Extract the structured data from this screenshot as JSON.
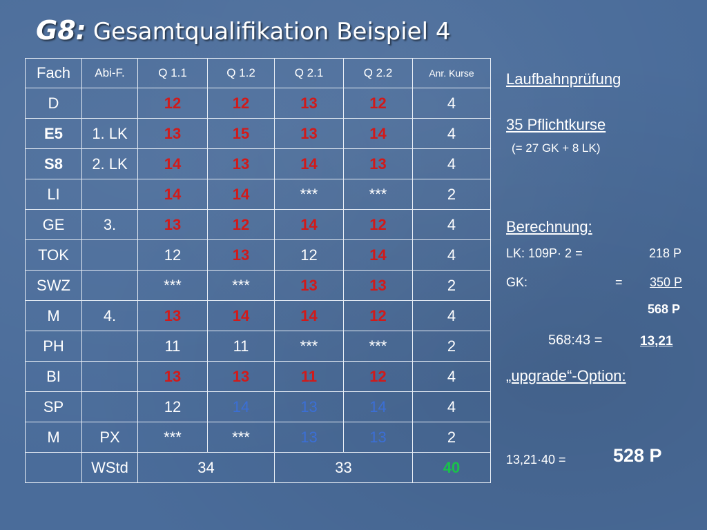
{
  "title": {
    "prefix": "G8:",
    "text": "Gesamtqualifikation Beispiel 4"
  },
  "table": {
    "header": [
      "Fach",
      "Abi-F.",
      "Q 1.1",
      "Q 1.2",
      "Q 2.1",
      "Q 2.2",
      "Anr. Kurse"
    ],
    "rows": [
      [
        "D",
        "",
        "12",
        "12",
        "13",
        "12",
        "4"
      ],
      [
        "E5",
        "1. LK",
        "13",
        "15",
        "13",
        "14",
        "4"
      ],
      [
        "S8",
        "2. LK",
        "14",
        "13",
        "14",
        "13",
        "4"
      ],
      [
        "LI",
        "",
        "14",
        "14",
        "***",
        "***",
        "2"
      ],
      [
        "GE",
        "3.",
        "13",
        "12",
        "14",
        "12",
        "4"
      ],
      [
        "TOK",
        "",
        "12",
        "13",
        "12",
        "14",
        "4"
      ],
      [
        "SWZ",
        "",
        "***",
        "***",
        "13",
        "13",
        "2"
      ],
      [
        "M",
        "4.",
        "13",
        "14",
        "14",
        "12",
        "4"
      ],
      [
        "PH",
        "",
        "11",
        "11",
        "***",
        "***",
        "2"
      ],
      [
        "BI",
        "",
        "13",
        "13",
        "11",
        "12",
        "4"
      ],
      [
        "SP",
        "",
        "12",
        "14",
        "13",
        "14",
        "4"
      ],
      [
        "M",
        "PX",
        "***",
        "***",
        "13",
        "13",
        "2"
      ]
    ],
    "footer": {
      "label": "WStd",
      "q1": "34",
      "q2": "33",
      "total": "40"
    }
  },
  "side": {
    "laufbahn": "Laufbahnprüfung",
    "pflicht": "35 Pflichtkurse",
    "pflicht_detail": "(= 27 GK + 8 LK)",
    "berechnung": "Berechnung:",
    "lk_label": "LK:  109P· 2  =",
    "lk_value": "218 P",
    "gk_label": "GK:",
    "gk_eq": "=",
    "gk_value": "350 P",
    "sum": "568 P",
    "ratio_label": "568:43 =",
    "ratio_value": "13,21",
    "upgrade": "„upgrade“-Option:",
    "upgrade_label": "13,21·40  =",
    "upgrade_value": "528 P"
  },
  "colors": {
    "background": "#4a6c9a",
    "red": "#d11a1a",
    "blue": "#3b6fd6",
    "green": "#19c24a"
  }
}
